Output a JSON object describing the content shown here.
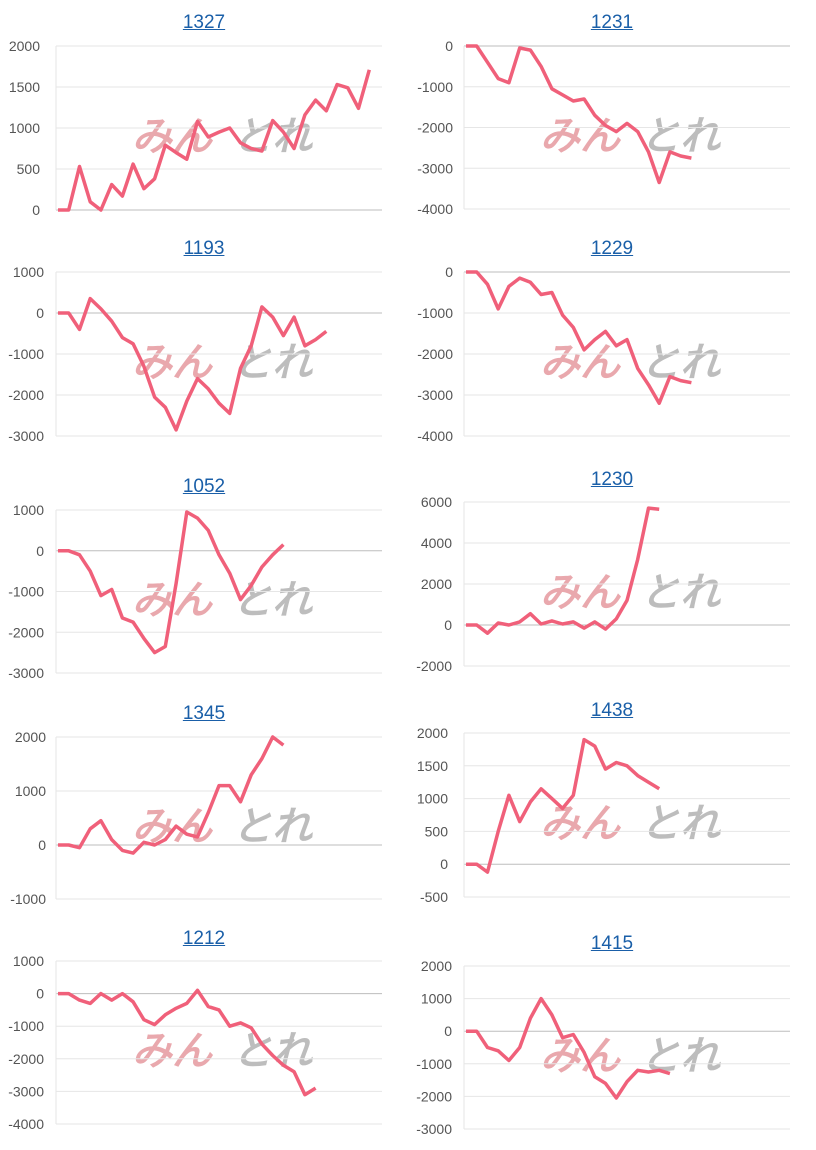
{
  "style": {
    "line_color": "#f0607a",
    "grid_color": "#e6e6e6",
    "zero_color": "#bdbdbd",
    "link_color": "#1a5fa8",
    "watermark_left_color": "#e9a8ad",
    "watermark_right_color": "#bdbdbd"
  },
  "watermark": {
    "left": "みん",
    "right": "とれ"
  },
  "chart_data": [
    {
      "type": "line",
      "title": "1327",
      "yticks": [
        0,
        500,
        1000,
        1500,
        2000
      ],
      "ylim": [
        0,
        2000
      ],
      "x_count": 31,
      "values": [
        0,
        0,
        530,
        100,
        0,
        310,
        170,
        560,
        260,
        380,
        790,
        700,
        620,
        1080,
        890,
        950,
        1000,
        820,
        750,
        720,
        1090,
        950,
        750,
        1160,
        1340,
        1210,
        1530,
        1490,
        1240,
        1710
      ]
    },
    {
      "type": "line",
      "title": "1231",
      "yticks": [
        0,
        -1000,
        -2000,
        -3000,
        -4000
      ],
      "ylim": [
        -4000,
        0
      ],
      "x_count": 31,
      "values": [
        0,
        0,
        -400,
        -800,
        -900,
        -50,
        -100,
        -500,
        -1050,
        -1200,
        -1350,
        -1300,
        -1700,
        -1950,
        -2100,
        -1900,
        -2100,
        -2600,
        -3350,
        -2600,
        -2700,
        -2750
      ]
    },
    {
      "type": "line",
      "title": "1193",
      "yticks": [
        1000,
        0,
        -1000,
        -2000,
        -3000
      ],
      "ylim": [
        -3000,
        1000
      ],
      "x_count": 31,
      "values": [
        0,
        0,
        -400,
        350,
        100,
        -200,
        -600,
        -750,
        -1300,
        -2050,
        -2300,
        -2850,
        -2150,
        -1600,
        -1850,
        -2200,
        -2450,
        -1350,
        -800,
        150,
        -100,
        -550,
        -100,
        -800,
        -650,
        -450
      ]
    },
    {
      "type": "line",
      "title": "1229",
      "yticks": [
        0,
        -1000,
        -2000,
        -3000,
        -4000
      ],
      "ylim": [
        -4000,
        0
      ],
      "x_count": 31,
      "values": [
        0,
        0,
        -300,
        -900,
        -350,
        -150,
        -250,
        -550,
        -500,
        -1050,
        -1350,
        -1900,
        -1650,
        -1450,
        -1800,
        -1650,
        -2350,
        -2750,
        -3200,
        -2550,
        -2650,
        -2700
      ]
    },
    {
      "type": "line",
      "title": "1052",
      "yticks": [
        1000,
        0,
        -1000,
        -2000,
        -3000
      ],
      "ylim": [
        -3000,
        1000
      ],
      "x_count": 31,
      "values": [
        0,
        0,
        -100,
        -500,
        -1100,
        -950,
        -1650,
        -1750,
        -2150,
        -2500,
        -2350,
        -800,
        950,
        800,
        500,
        -100,
        -550,
        -1200,
        -850,
        -400,
        -100,
        150
      ]
    },
    {
      "type": "line",
      "title": "1230",
      "yticks": [
        6000,
        4000,
        2000,
        0,
        -2000
      ],
      "ylim": [
        -2000,
        6000
      ],
      "x_count": 31,
      "values": [
        0,
        0,
        -400,
        100,
        0,
        150,
        550,
        50,
        200,
        50,
        150,
        -150,
        150,
        -200,
        300,
        1200,
        3200,
        5700,
        5650
      ]
    },
    {
      "type": "line",
      "title": "1345",
      "yticks": [
        2000,
        1000,
        0,
        -1000
      ],
      "ylim": [
        -1000,
        2000
      ],
      "x_count": 31,
      "values": [
        0,
        0,
        -50,
        300,
        450,
        100,
        -100,
        -150,
        50,
        0,
        100,
        350,
        200,
        150,
        600,
        1100,
        1100,
        800,
        1300,
        1600,
        2000,
        1850
      ]
    },
    {
      "type": "line",
      "title": "1438",
      "yticks": [
        2000,
        1500,
        1000,
        500,
        0,
        -500
      ],
      "ylim": [
        -500,
        2000
      ],
      "x_count": 31,
      "values": [
        0,
        0,
        -120,
        500,
        1050,
        650,
        950,
        1150,
        1000,
        850,
        1050,
        1900,
        1800,
        1450,
        1550,
        1500,
        1350,
        1250,
        1150
      ]
    },
    {
      "type": "line",
      "title": "1212",
      "yticks": [
        1000,
        0,
        -1000,
        -2000,
        -3000,
        -4000
      ],
      "ylim": [
        -4000,
        1000
      ],
      "x_count": 31,
      "values": [
        0,
        0,
        -200,
        -300,
        0,
        -200,
        0,
        -250,
        -800,
        -950,
        -650,
        -450,
        -300,
        100,
        -400,
        -500,
        -1000,
        -900,
        -1050,
        -1550,
        -1900,
        -2200,
        -2400,
        -3100,
        -2900
      ]
    },
    {
      "type": "line",
      "title": "1415",
      "yticks": [
        2000,
        1000,
        0,
        -1000,
        -2000,
        -3000
      ],
      "ylim": [
        -3000,
        2000
      ],
      "x_count": 31,
      "values": [
        0,
        0,
        -500,
        -600,
        -900,
        -500,
        400,
        1000,
        500,
        -200,
        -100,
        -650,
        -1400,
        -1600,
        -2050,
        -1550,
        -1200,
        -1250,
        -1200,
        -1300
      ]
    }
  ]
}
